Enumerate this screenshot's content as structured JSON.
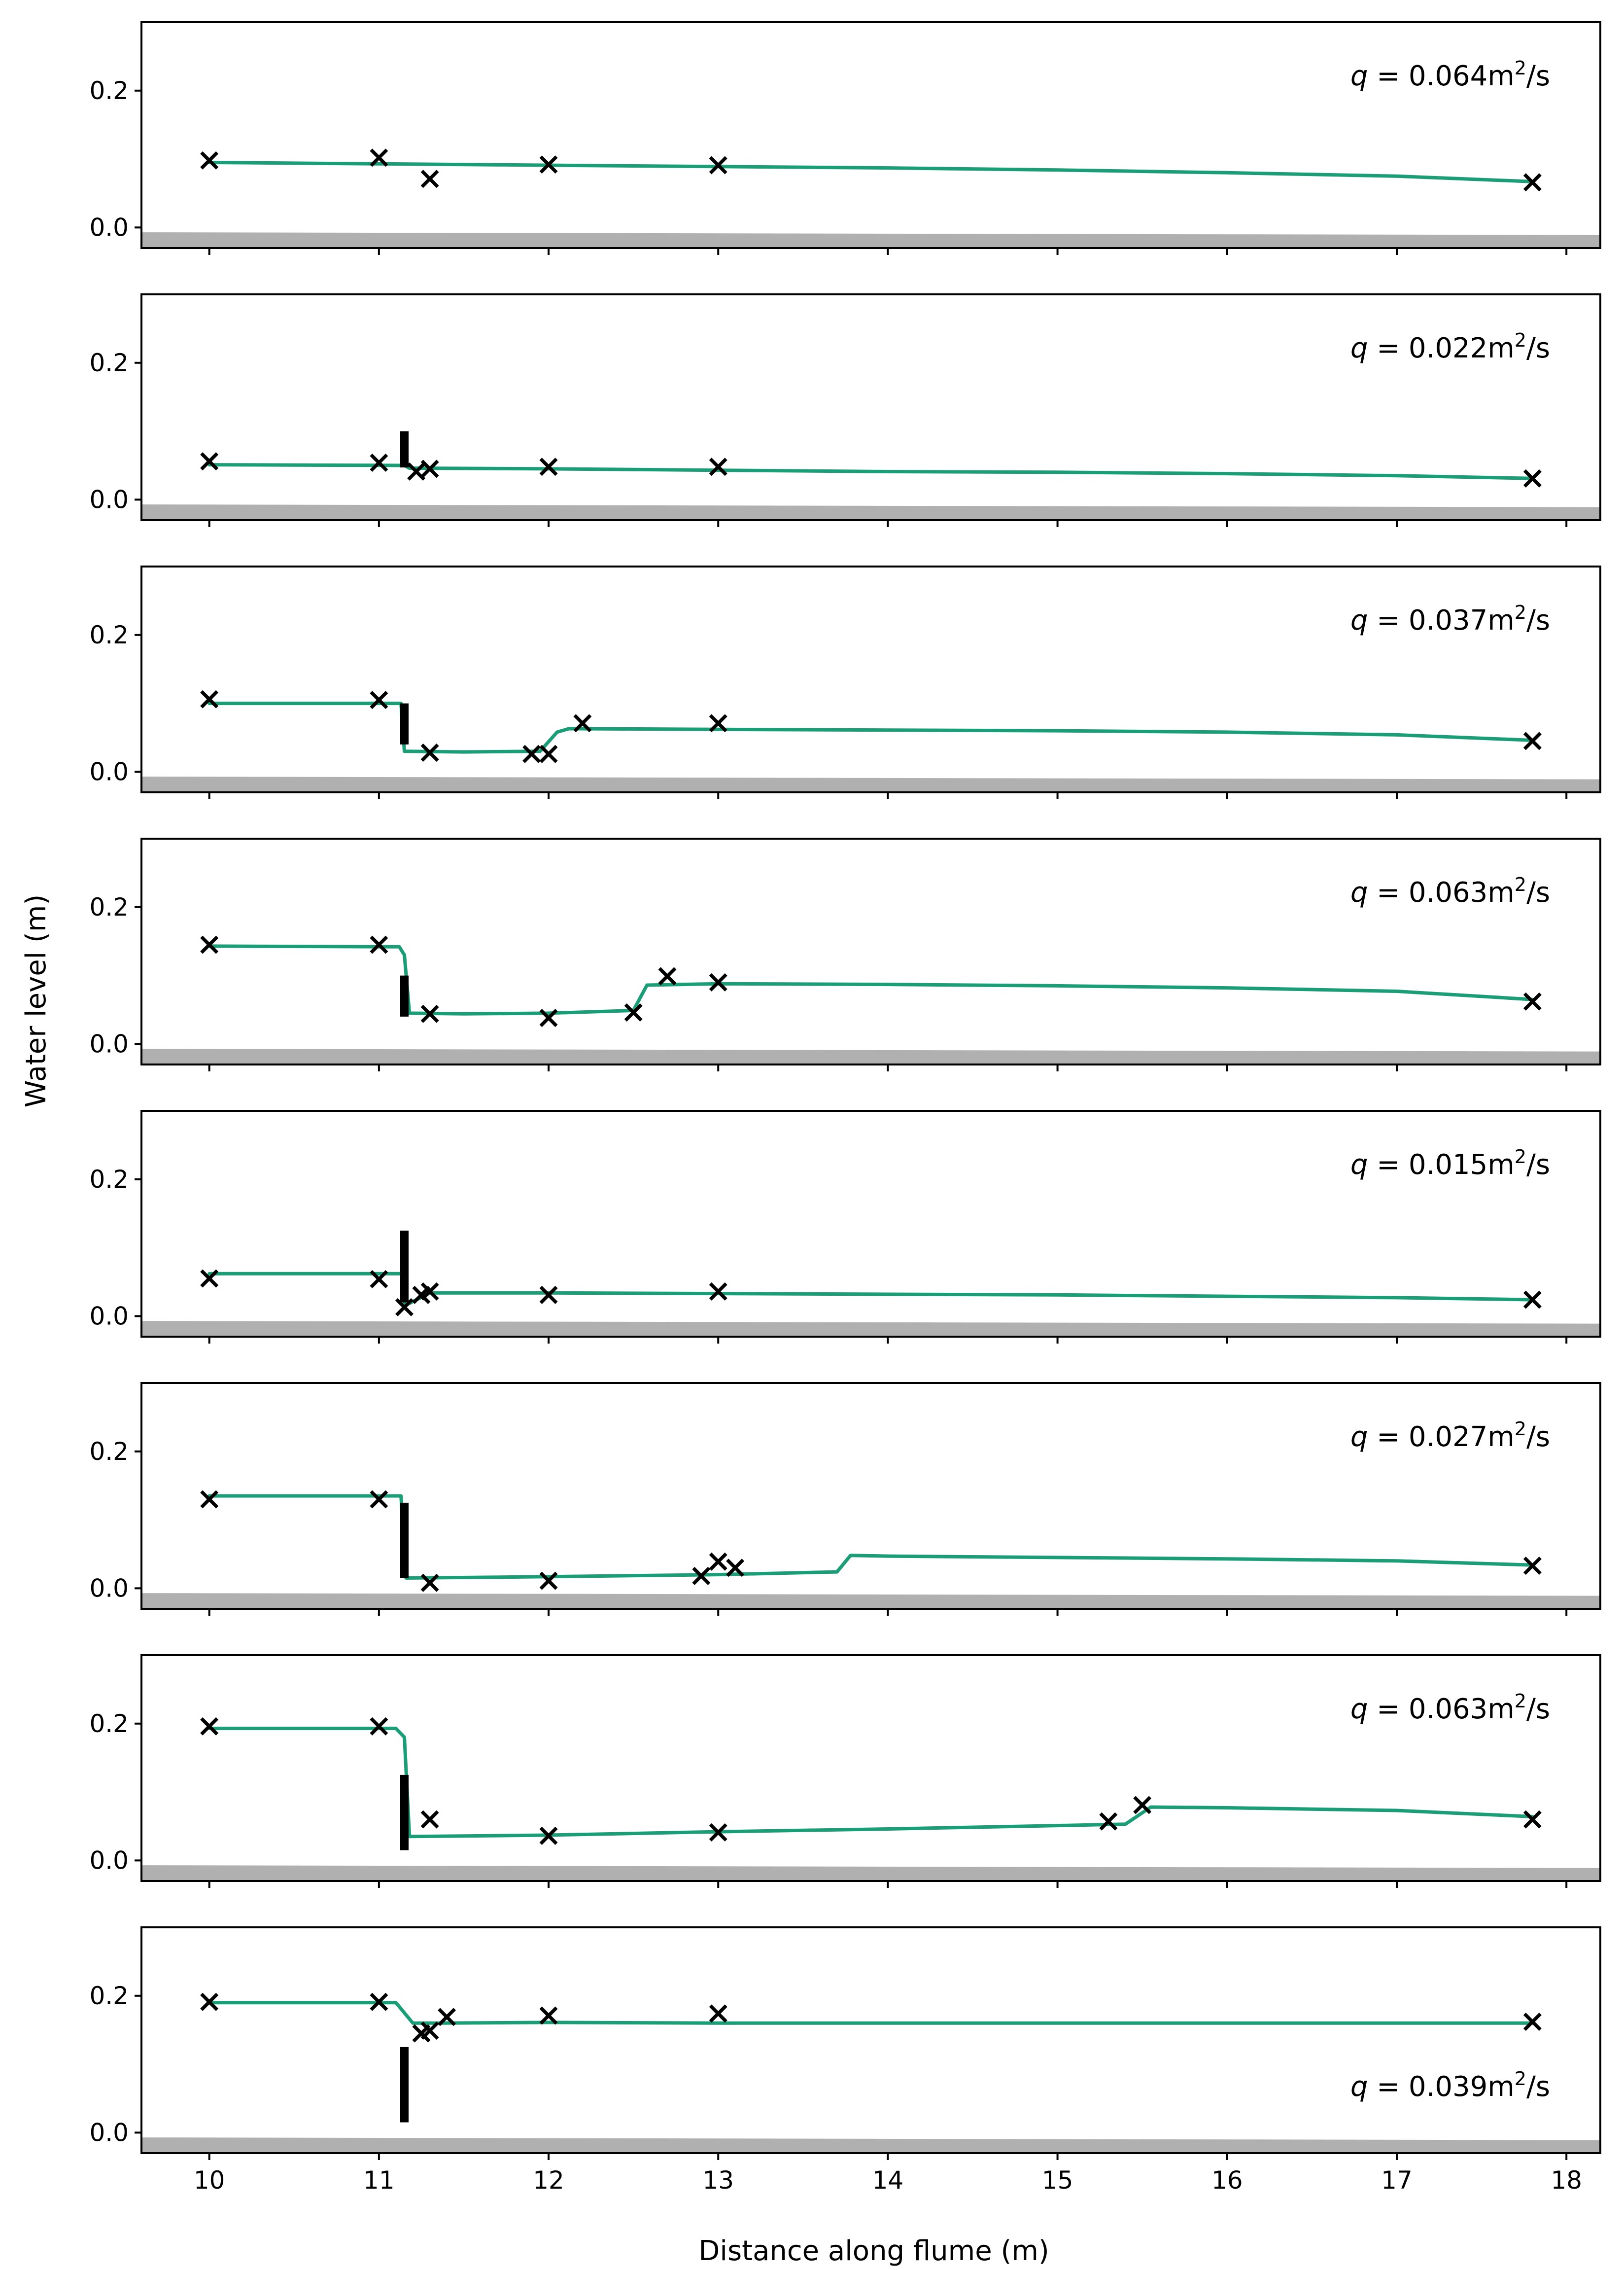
{
  "chart_data": {
    "type": "line",
    "xlabel": "Distance along flume (m)",
    "ylabel": "Water level (m)",
    "xlim": [
      9.6,
      18.2
    ],
    "ylim": [
      -0.03,
      0.3
    ],
    "xticks": [
      "10",
      "11",
      "12",
      "13",
      "14",
      "15",
      "16",
      "17",
      "18"
    ],
    "yticks": [
      "0.0",
      "0.2"
    ],
    "line_color": "#1b9e77",
    "marker_color": "#000000",
    "bed_color": "#b0b0b0",
    "panels": [
      {
        "q_prefix": "q",
        "q_value": "= 0.064m",
        "q_sup": "2",
        "q_suffix": "/s",
        "label_position": "top-right",
        "gate": null,
        "line": [
          [
            10,
            0.095
          ],
          [
            11,
            0.093
          ],
          [
            12,
            0.091
          ],
          [
            13,
            0.089
          ],
          [
            14,
            0.087
          ],
          [
            15,
            0.084
          ],
          [
            16,
            0.08
          ],
          [
            17,
            0.075
          ],
          [
            17.8,
            0.067
          ]
        ],
        "markers": [
          [
            10,
            0.098
          ],
          [
            11,
            0.102
          ],
          [
            11.3,
            0.071
          ],
          [
            12,
            0.092
          ],
          [
            13,
            0.091
          ],
          [
            17.8,
            0.066
          ]
        ]
      },
      {
        "q_prefix": "q",
        "q_value": "= 0.022m",
        "q_sup": "2",
        "q_suffix": "/s",
        "label_position": "top-right",
        "gate": [
          11.15,
          0.047,
          0.1
        ],
        "line": [
          [
            10,
            0.051
          ],
          [
            11.15,
            0.05
          ],
          [
            11.18,
            0.046
          ],
          [
            12,
            0.045
          ],
          [
            13,
            0.043
          ],
          [
            14,
            0.041
          ],
          [
            15,
            0.04
          ],
          [
            16,
            0.038
          ],
          [
            17,
            0.035
          ],
          [
            17.8,
            0.031
          ]
        ],
        "markers": [
          [
            10,
            0.056
          ],
          [
            11,
            0.054
          ],
          [
            11.22,
            0.041
          ],
          [
            11.3,
            0.045
          ],
          [
            12,
            0.048
          ],
          [
            13,
            0.048
          ],
          [
            17.8,
            0.031
          ]
        ]
      },
      {
        "q_prefix": "q",
        "q_value": "= 0.037m",
        "q_sup": "2",
        "q_suffix": "/s",
        "label_position": "top-right",
        "gate": [
          11.15,
          0.04,
          0.1
        ],
        "line": [
          [
            10,
            0.1
          ],
          [
            11.13,
            0.1
          ],
          [
            11.15,
            0.03
          ],
          [
            11.5,
            0.029
          ],
          [
            11.95,
            0.03
          ],
          [
            12.05,
            0.058
          ],
          [
            12.12,
            0.063
          ],
          [
            13,
            0.062
          ],
          [
            14,
            0.061
          ],
          [
            15,
            0.06
          ],
          [
            16,
            0.058
          ],
          [
            17,
            0.054
          ],
          [
            17.8,
            0.046
          ]
        ],
        "markers": [
          [
            10,
            0.106
          ],
          [
            11,
            0.105
          ],
          [
            11.3,
            0.028
          ],
          [
            11.9,
            0.026
          ],
          [
            12,
            0.026
          ],
          [
            12.2,
            0.071
          ],
          [
            13,
            0.071
          ],
          [
            17.8,
            0.045
          ]
        ]
      },
      {
        "q_prefix": "q",
        "q_value": "= 0.063m",
        "q_sup": "2",
        "q_suffix": "/s",
        "label_position": "top-right",
        "gate": [
          11.15,
          0.04,
          0.1
        ],
        "line": [
          [
            10,
            0.143
          ],
          [
            11.12,
            0.142
          ],
          [
            11.15,
            0.13
          ],
          [
            11.18,
            0.045
          ],
          [
            11.5,
            0.044
          ],
          [
            12,
            0.045
          ],
          [
            12.5,
            0.049
          ],
          [
            12.58,
            0.086
          ],
          [
            13,
            0.088
          ],
          [
            14,
            0.087
          ],
          [
            15,
            0.085
          ],
          [
            16,
            0.082
          ],
          [
            17,
            0.077
          ],
          [
            17.8,
            0.065
          ]
        ],
        "markers": [
          [
            10,
            0.145
          ],
          [
            11,
            0.145
          ],
          [
            11.3,
            0.044
          ],
          [
            12,
            0.038
          ],
          [
            12.5,
            0.046
          ],
          [
            12.7,
            0.099
          ],
          [
            13,
            0.09
          ],
          [
            17.8,
            0.062
          ]
        ]
      },
      {
        "q_prefix": "q",
        "q_value": "= 0.015m",
        "q_sup": "2",
        "q_suffix": "/s",
        "label_position": "top-right",
        "gate": [
          11.15,
          0.02,
          0.125
        ],
        "line": [
          [
            10,
            0.062
          ],
          [
            11.15,
            0.062
          ],
          [
            11.15,
            0.015
          ],
          [
            11.3,
            0.034
          ],
          [
            12,
            0.034
          ],
          [
            13,
            0.033
          ],
          [
            14,
            0.032
          ],
          [
            15,
            0.031
          ],
          [
            16,
            0.029
          ],
          [
            17,
            0.027
          ],
          [
            17.8,
            0.024
          ]
        ],
        "markers": [
          [
            10,
            0.055
          ],
          [
            11,
            0.054
          ],
          [
            11.15,
            0.013
          ],
          [
            11.25,
            0.031
          ],
          [
            11.3,
            0.036
          ],
          [
            12,
            0.031
          ],
          [
            13,
            0.036
          ],
          [
            17.8,
            0.024
          ]
        ]
      },
      {
        "q_prefix": "q",
        "q_value": "= 0.027m",
        "q_sup": "2",
        "q_suffix": "/s",
        "label_position": "top-right",
        "gate": [
          11.15,
          0.015,
          0.125
        ],
        "line": [
          [
            10,
            0.135
          ],
          [
            11.13,
            0.135
          ],
          [
            11.16,
            0.015
          ],
          [
            12,
            0.017
          ],
          [
            13,
            0.02
          ],
          [
            13.7,
            0.024
          ],
          [
            13.78,
            0.048
          ],
          [
            14,
            0.047
          ],
          [
            15,
            0.045
          ],
          [
            16,
            0.043
          ],
          [
            17,
            0.04
          ],
          [
            17.8,
            0.034
          ]
        ],
        "markers": [
          [
            10,
            0.13
          ],
          [
            11,
            0.13
          ],
          [
            11.3,
            0.008
          ],
          [
            12,
            0.011
          ],
          [
            12.9,
            0.018
          ],
          [
            13,
            0.039
          ],
          [
            13.1,
            0.03
          ],
          [
            17.8,
            0.033
          ]
        ]
      },
      {
        "q_prefix": "q",
        "q_value": "= 0.063m",
        "q_sup": "2",
        "q_suffix": "/s",
        "label_position": "top-right",
        "gate": [
          11.15,
          0.015,
          0.125
        ],
        "line": [
          [
            10,
            0.193
          ],
          [
            11.1,
            0.193
          ],
          [
            11.15,
            0.18
          ],
          [
            11.18,
            0.035
          ],
          [
            12,
            0.037
          ],
          [
            13,
            0.042
          ],
          [
            14,
            0.046
          ],
          [
            15,
            0.051
          ],
          [
            15.4,
            0.053
          ],
          [
            15.55,
            0.078
          ],
          [
            16,
            0.077
          ],
          [
            17,
            0.073
          ],
          [
            17.8,
            0.064
          ]
        ],
        "markers": [
          [
            10,
            0.196
          ],
          [
            11,
            0.196
          ],
          [
            11.3,
            0.06
          ],
          [
            12,
            0.036
          ],
          [
            13,
            0.041
          ],
          [
            15.3,
            0.057
          ],
          [
            15.5,
            0.081
          ],
          [
            17.8,
            0.06
          ]
        ]
      },
      {
        "q_prefix": "q",
        "q_value": "= 0.039m",
        "q_sup": "2",
        "q_suffix": "/s",
        "label_position": "right",
        "gate": [
          11.15,
          0.015,
          0.125
        ],
        "line": [
          [
            10,
            0.19
          ],
          [
            11.1,
            0.19
          ],
          [
            11.2,
            0.16
          ],
          [
            11.35,
            0.16
          ],
          [
            12,
            0.161
          ],
          [
            13,
            0.16
          ],
          [
            14,
            0.16
          ],
          [
            15,
            0.16
          ],
          [
            16,
            0.16
          ],
          [
            17,
            0.16
          ],
          [
            17.8,
            0.16
          ]
        ],
        "markers": [
          [
            10,
            0.191
          ],
          [
            11,
            0.191
          ],
          [
            11.25,
            0.145
          ],
          [
            11.3,
            0.149
          ],
          [
            11.4,
            0.169
          ],
          [
            12,
            0.171
          ],
          [
            13,
            0.174
          ],
          [
            17.8,
            0.162
          ]
        ]
      }
    ]
  }
}
